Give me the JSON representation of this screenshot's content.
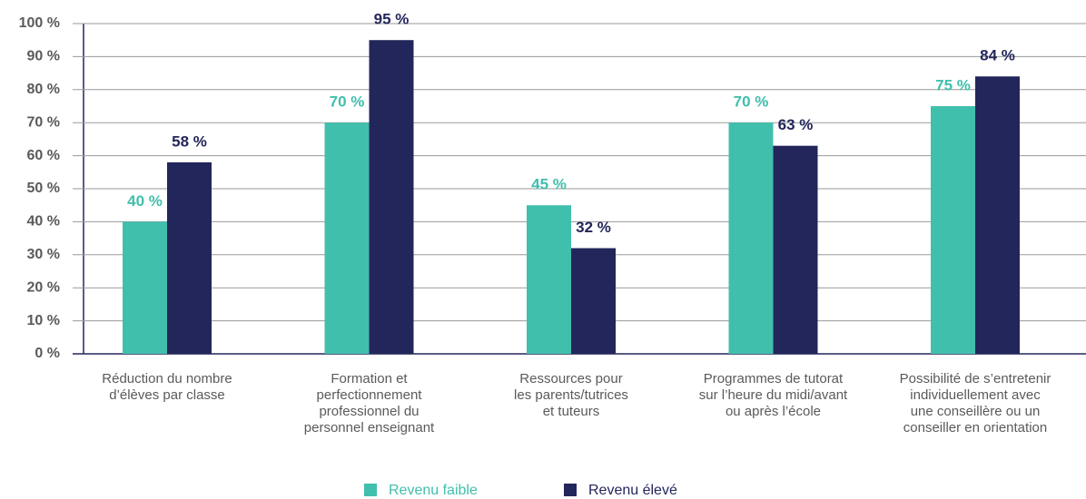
{
  "chart_data": {
    "type": "bar",
    "categories": [
      [
        "Réduction du nombre",
        "d’élèves par classe"
      ],
      [
        "Formation et",
        "perfectionnement",
        "professionnel du",
        "personnel enseignant"
      ],
      [
        "Ressources pour",
        "les parents/tutrices",
        "et tuteurs"
      ],
      [
        "Programmes de tutorat",
        "sur l’heure du midi/avant",
        "ou après l’école"
      ],
      [
        "Possibilité de s’entretenir",
        "individuellement avec",
        "une conseillère ou un",
        "conseiller en orientation"
      ]
    ],
    "series": [
      {
        "name": "Revenu faible",
        "color": "#41bfad",
        "values": [
          40,
          70,
          45,
          70,
          75
        ],
        "value_labels": [
          "40 %",
          "70 %",
          "45 %",
          "70 %",
          "75 %"
        ]
      },
      {
        "name": "Revenu élevé",
        "color": "#23265a",
        "values": [
          58,
          95,
          32,
          63,
          84
        ],
        "value_labels": [
          "58 %",
          "95 %",
          "32 %",
          "63 %",
          "84 %"
        ]
      }
    ],
    "ylim": [
      0,
      100
    ],
    "yticks": [
      {
        "value": 0,
        "label": "0 %"
      },
      {
        "value": 10,
        "label": "10 %"
      },
      {
        "value": 20,
        "label": "20 %"
      },
      {
        "value": 30,
        "label": "30 %"
      },
      {
        "value": 40,
        "label": "40 %"
      },
      {
        "value": 50,
        "label": "50 %"
      },
      {
        "value": 60,
        "label": "60 %"
      },
      {
        "value": 70,
        "label": "70 %"
      },
      {
        "value": 80,
        "label": "80 %"
      },
      {
        "value": 90,
        "label": "90 %"
      },
      {
        "value": 100,
        "label": "100 %"
      }
    ],
    "grid": true
  }
}
